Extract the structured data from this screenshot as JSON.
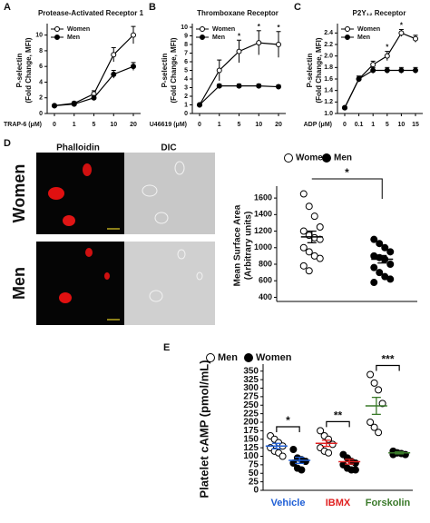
{
  "chart_data": [
    {
      "type": "line",
      "label": "A",
      "title": "Protease-Activated Receptor 1",
      "x_label": "TRAP-6 (μM)",
      "y_label": [
        "P-selectin",
        "(Fold Change, MFI)"
      ],
      "categories": [
        "0",
        "1",
        "5",
        "10",
        "20"
      ],
      "series": [
        {
          "name": "Women",
          "marker": "open",
          "color": "#000000",
          "values": [
            1,
            1.3,
            2.5,
            7.5,
            10
          ],
          "errors": [
            0.1,
            0.2,
            0.4,
            0.9,
            1.1
          ]
        },
        {
          "name": "Men",
          "marker": "filled",
          "color": "#000000",
          "values": [
            1,
            1.2,
            2,
            5,
            6
          ],
          "errors": [
            0.1,
            0.15,
            0.3,
            0.5,
            0.5
          ]
        }
      ],
      "ylim": [
        0,
        11
      ],
      "yticks": [
        0,
        2,
        4,
        6,
        8,
        10
      ]
    },
    {
      "type": "line",
      "label": "B",
      "title": "Thromboxane Receptor",
      "x_label": "U46619 (μM)",
      "y_label": [
        "P-selectin",
        "(Fold Change, MFI)"
      ],
      "categories": [
        "0",
        "1",
        "5",
        "10",
        "20"
      ],
      "series": [
        {
          "name": "Women",
          "marker": "open",
          "color": "#000000",
          "values": [
            1,
            5,
            7.2,
            8.2,
            8
          ],
          "errors": [
            0.1,
            1.2,
            1.3,
            1.4,
            1.5
          ]
        },
        {
          "name": "Men",
          "marker": "filled",
          "color": "#000000",
          "values": [
            1,
            3.2,
            3.2,
            3.2,
            3.1
          ],
          "errors": [
            0.1,
            0.2,
            0.2,
            0.2,
            0.2
          ]
        }
      ],
      "significance": [
        null,
        null,
        "*",
        "*",
        "*"
      ],
      "ylim": [
        0,
        10
      ],
      "yticks": [
        0,
        1,
        2,
        3,
        4,
        5,
        6,
        7,
        8,
        9,
        10
      ]
    },
    {
      "type": "line",
      "label": "C",
      "title": "P2Y₁₂ Receptor",
      "x_label": "ADP (μM)",
      "y_label": [
        "P-selectin",
        "(Fold Change, MFI)"
      ],
      "categories": [
        "0",
        "0.1",
        "1",
        "5",
        "10",
        "15"
      ],
      "series": [
        {
          "name": "Women",
          "marker": "open",
          "color": "#000000",
          "values": [
            1.1,
            1.6,
            1.85,
            2.0,
            2.4,
            2.3
          ],
          "errors": [
            0.02,
            0.05,
            0.06,
            0.08,
            0.06,
            0.06
          ]
        },
        {
          "name": "Men",
          "marker": "filled",
          "color": "#000000",
          "values": [
            1.1,
            1.6,
            1.75,
            1.75,
            1.75,
            1.75
          ],
          "errors": [
            0.02,
            0.05,
            0.05,
            0.05,
            0.05,
            0.05
          ]
        }
      ],
      "significance": [
        null,
        null,
        null,
        "*",
        "*",
        null
      ],
      "ylim": [
        1.0,
        2.5
      ],
      "yticks": [
        {
          "value": 1.0,
          "label": "1.0"
        },
        1.2,
        1.4,
        1.6,
        1.8,
        {
          "value": 2.0,
          "label": "2.0"
        },
        2.2,
        2.4
      ]
    },
    {
      "type": "dot",
      "y_label": [
        "Mean Surface Area",
        "(Arbitrary units)"
      ],
      "series": [
        {
          "name": "Women",
          "marker": "open",
          "color": "#000000",
          "values": [
            1650,
            1500,
            1380,
            1250,
            1200,
            1150,
            1120,
            1100,
            1000,
            950,
            900,
            870,
            780,
            720
          ],
          "mean": 1130,
          "sem": 70
        },
        {
          "name": "Men",
          "marker": "filled",
          "color": "#000000",
          "values": [
            1100,
            1050,
            1000,
            950,
            900,
            880,
            860,
            800,
            760,
            700,
            650,
            620,
            580
          ],
          "mean": 860,
          "sem": 45
        }
      ],
      "significance": "*",
      "ylim": [
        350,
        1700
      ],
      "yticks": [
        400,
        600,
        800,
        1000,
        1200,
        1400,
        1600
      ]
    },
    {
      "type": "dot",
      "label": "E",
      "y_label": [
        "Platelet cAMP (pmol/mL)"
      ],
      "categories": [
        "Vehicle",
        "IBMX",
        "Forskolin"
      ],
      "category_colors": [
        "#1f5fd6",
        "#e02020",
        "#3a7a2a"
      ],
      "series": [
        {
          "name": "Men",
          "marker": "open",
          "color": "#000000",
          "values": [
            [
              160,
              150,
              140,
              130,
              125,
              115,
              110,
              100
            ],
            [
              175,
              160,
              150,
              135,
              125,
              115,
              110
            ],
            [
              340,
              315,
              295,
              255,
              200,
              185,
              170
            ]
          ],
          "means": [
            130,
            138,
            248
          ],
          "sems": [
            8,
            9,
            25
          ]
        },
        {
          "name": "Women",
          "marker": "filled",
          "color": "#000000",
          "values": [
            [
              120,
              95,
              90,
              85,
              80,
              65,
              60
            ],
            [
              105,
              95,
              85,
              80,
              75,
              65,
              60,
              60
            ],
            [
              115,
              110,
              108,
              105,
              105,
              110
            ]
          ],
          "means": [
            88,
            84,
            110
          ],
          "sems": [
            9,
            7,
            3
          ]
        }
      ],
      "significance": [
        "*",
        "**",
        "***"
      ],
      "ylim": [
        0,
        360
      ],
      "yticks": [
        0,
        25,
        50,
        75,
        100,
        125,
        150,
        175,
        200,
        225,
        250,
        275,
        300,
        325,
        350
      ]
    }
  ],
  "images": {
    "label": "D",
    "columns": [
      "Phalloidin",
      "DIC"
    ],
    "rows": [
      "Women",
      "Men"
    ]
  }
}
